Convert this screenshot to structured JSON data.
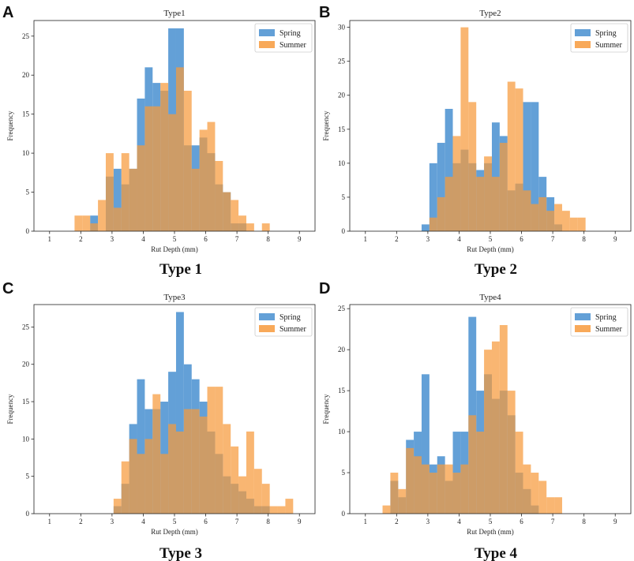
{
  "colors": {
    "spring": "#5b9bd5",
    "summer": "#f79a3c",
    "overlap": "#c98445"
  },
  "chart_data": [
    {
      "type": "bar",
      "panel_letter": "A",
      "caption": "Type 1",
      "title": "Type1",
      "xlabel": "Rut Depth (mm)",
      "ylabel": "Frequency",
      "xlim": [
        0.5,
        9.5
      ],
      "ylim": [
        0,
        27
      ],
      "xticks": [
        1,
        2,
        3,
        4,
        5,
        6,
        7,
        8,
        9
      ],
      "yticks": [
        0,
        5,
        10,
        15,
        20,
        25
      ],
      "legend": [
        "Spring",
        "Summer"
      ],
      "series": [
        {
          "name": "Spring",
          "bins": [
            [
              2.3,
              2.55,
              2
            ],
            [
              2.8,
              3.05,
              7
            ],
            [
              3.05,
              3.3,
              8
            ],
            [
              3.3,
              3.55,
              6
            ],
            [
              3.55,
              3.8,
              8
            ],
            [
              3.8,
              4.05,
              17
            ],
            [
              4.05,
              4.3,
              21
            ],
            [
              4.3,
              4.55,
              19
            ],
            [
              4.55,
              4.8,
              18
            ],
            [
              4.8,
              5.05,
              26
            ],
            [
              5.05,
              5.3,
              26
            ],
            [
              5.3,
              5.55,
              11
            ],
            [
              5.55,
              5.8,
              11
            ],
            [
              5.8,
              6.05,
              12
            ],
            [
              6.05,
              6.3,
              10
            ],
            [
              6.3,
              6.55,
              6
            ],
            [
              6.55,
              6.8,
              5
            ],
            [
              6.8,
              7.05,
              1
            ],
            [
              7.05,
              7.3,
              1
            ]
          ]
        },
        {
          "name": "Summer",
          "bins": [
            [
              1.8,
              2.05,
              2
            ],
            [
              2.05,
              2.3,
              2
            ],
            [
              2.3,
              2.55,
              1
            ],
            [
              2.55,
              2.8,
              4
            ],
            [
              2.8,
              3.05,
              10
            ],
            [
              3.05,
              3.3,
              3
            ],
            [
              3.3,
              3.55,
              10
            ],
            [
              3.55,
              3.8,
              8
            ],
            [
              3.8,
              4.05,
              11
            ],
            [
              4.05,
              4.3,
              16
            ],
            [
              4.3,
              4.55,
              16
            ],
            [
              4.55,
              4.8,
              19
            ],
            [
              4.8,
              5.05,
              15
            ],
            [
              5.05,
              5.3,
              21
            ],
            [
              5.3,
              5.55,
              18
            ],
            [
              5.55,
              5.8,
              8
            ],
            [
              5.8,
              6.05,
              13
            ],
            [
              6.05,
              6.3,
              14
            ],
            [
              6.3,
              6.55,
              9
            ],
            [
              6.55,
              6.8,
              5
            ],
            [
              6.8,
              7.05,
              4
            ],
            [
              7.05,
              7.3,
              2
            ],
            [
              7.3,
              7.55,
              1
            ],
            [
              7.55,
              7.8,
              0
            ],
            [
              7.8,
              8.05,
              1
            ]
          ]
        }
      ]
    },
    {
      "type": "bar",
      "panel_letter": "B",
      "caption": "Type 2",
      "title": "Type2",
      "xlabel": "Rut Depth (mm)",
      "ylabel": "Frequency",
      "xlim": [
        0.5,
        9.5
      ],
      "ylim": [
        0,
        31
      ],
      "xticks": [
        1,
        2,
        3,
        4,
        5,
        6,
        7,
        8,
        9
      ],
      "yticks": [
        0,
        5,
        10,
        15,
        20,
        25,
        30
      ],
      "legend": [
        "Spring",
        "Summer"
      ],
      "series": [
        {
          "name": "Spring",
          "bins": [
            [
              2.8,
              3.05,
              1
            ],
            [
              3.05,
              3.3,
              10
            ],
            [
              3.3,
              3.55,
              13
            ],
            [
              3.55,
              3.8,
              18
            ],
            [
              3.8,
              4.05,
              10
            ],
            [
              4.05,
              4.3,
              12
            ],
            [
              4.3,
              4.55,
              10
            ],
            [
              4.55,
              4.8,
              9
            ],
            [
              4.8,
              5.05,
              10
            ],
            [
              5.05,
              5.3,
              16
            ],
            [
              5.3,
              5.55,
              14
            ],
            [
              5.55,
              5.8,
              6
            ],
            [
              5.8,
              6.05,
              7
            ],
            [
              6.05,
              6.3,
              19
            ],
            [
              6.3,
              6.55,
              19
            ],
            [
              6.55,
              6.8,
              8
            ],
            [
              6.8,
              7.05,
              5
            ],
            [
              7.05,
              7.3,
              1
            ]
          ]
        },
        {
          "name": "Summer",
          "bins": [
            [
              3.05,
              3.3,
              2
            ],
            [
              3.3,
              3.55,
              5
            ],
            [
              3.55,
              3.8,
              8
            ],
            [
              3.8,
              4.05,
              14
            ],
            [
              4.05,
              4.3,
              30
            ],
            [
              4.3,
              4.55,
              19
            ],
            [
              4.55,
              4.8,
              8
            ],
            [
              4.8,
              5.05,
              11
            ],
            [
              5.05,
              5.3,
              8
            ],
            [
              5.3,
              5.55,
              13
            ],
            [
              5.55,
              5.8,
              22
            ],
            [
              5.8,
              6.05,
              21
            ],
            [
              6.05,
              6.3,
              6
            ],
            [
              6.3,
              6.55,
              4
            ],
            [
              6.55,
              6.8,
              5
            ],
            [
              6.8,
              7.05,
              3
            ],
            [
              7.05,
              7.3,
              4
            ],
            [
              7.3,
              7.55,
              3
            ],
            [
              7.55,
              7.8,
              2
            ],
            [
              7.8,
              8.05,
              2
            ]
          ]
        }
      ]
    },
    {
      "type": "bar",
      "panel_letter": "C",
      "caption": "Type 3",
      "title": "Type3",
      "xlabel": "Rut Depth (mm)",
      "ylabel": "Frequency",
      "xlim": [
        0.5,
        9.5
      ],
      "ylim": [
        0,
        28
      ],
      "xticks": [
        1,
        2,
        3,
        4,
        5,
        6,
        7,
        8,
        9
      ],
      "yticks": [
        0,
        5,
        10,
        15,
        20,
        25
      ],
      "legend": [
        "Spring",
        "Summer"
      ],
      "series": [
        {
          "name": "Spring",
          "bins": [
            [
              3.05,
              3.3,
              1
            ],
            [
              3.3,
              3.55,
              4
            ],
            [
              3.55,
              3.8,
              12
            ],
            [
              3.8,
              4.05,
              18
            ],
            [
              4.05,
              4.3,
              14
            ],
            [
              4.3,
              4.55,
              14
            ],
            [
              4.55,
              4.8,
              15
            ],
            [
              4.8,
              5.05,
              19
            ],
            [
              5.05,
              5.3,
              27
            ],
            [
              5.3,
              5.55,
              20
            ],
            [
              5.55,
              5.8,
              18
            ],
            [
              5.8,
              6.05,
              15
            ],
            [
              6.05,
              6.3,
              11
            ],
            [
              6.3,
              6.55,
              8
            ],
            [
              6.55,
              6.8,
              5
            ],
            [
              6.8,
              7.05,
              4
            ],
            [
              7.05,
              7.3,
              3
            ],
            [
              7.3,
              7.55,
              2
            ],
            [
              7.55,
              7.8,
              1
            ],
            [
              7.8,
              8.05,
              1
            ]
          ]
        },
        {
          "name": "Summer",
          "bins": [
            [
              3.05,
              3.3,
              2
            ],
            [
              3.3,
              3.55,
              7
            ],
            [
              3.55,
              3.8,
              10
            ],
            [
              3.8,
              4.05,
              8
            ],
            [
              4.05,
              4.3,
              10
            ],
            [
              4.3,
              4.55,
              16
            ],
            [
              4.55,
              4.8,
              8
            ],
            [
              4.8,
              5.05,
              12
            ],
            [
              5.05,
              5.3,
              11
            ],
            [
              5.3,
              5.55,
              14
            ],
            [
              5.55,
              5.8,
              14
            ],
            [
              5.8,
              6.05,
              13
            ],
            [
              6.05,
              6.3,
              17
            ],
            [
              6.3,
              6.55,
              17
            ],
            [
              6.55,
              6.8,
              12
            ],
            [
              6.8,
              7.05,
              9
            ],
            [
              7.05,
              7.3,
              5
            ],
            [
              7.3,
              7.55,
              11
            ],
            [
              7.55,
              7.8,
              6
            ],
            [
              7.8,
              8.05,
              4
            ],
            [
              8.05,
              8.3,
              1
            ],
            [
              8.3,
              8.55,
              1
            ],
            [
              8.55,
              8.8,
              2
            ]
          ]
        }
      ]
    },
    {
      "type": "bar",
      "panel_letter": "D",
      "caption": "Type 4",
      "title": "Type4",
      "xlabel": "Rut Depth (mm)",
      "ylabel": "Frequency",
      "xlim": [
        0.5,
        9.5
      ],
      "ylim": [
        0,
        25.5
      ],
      "xticks": [
        1,
        2,
        3,
        4,
        5,
        6,
        7,
        8,
        9
      ],
      "yticks": [
        0,
        5,
        10,
        15,
        20,
        25
      ],
      "legend": [
        "Spring",
        "Summer"
      ],
      "series": [
        {
          "name": "Spring",
          "bins": [
            [
              1.8,
              2.05,
              4
            ],
            [
              2.05,
              2.3,
              2
            ],
            [
              2.3,
              2.55,
              9
            ],
            [
              2.55,
              2.8,
              10
            ],
            [
              2.8,
              3.05,
              17
            ],
            [
              3.05,
              3.3,
              6
            ],
            [
              3.3,
              3.55,
              7
            ],
            [
              3.55,
              3.8,
              4
            ],
            [
              3.8,
              4.05,
              10
            ],
            [
              4.05,
              4.3,
              10
            ],
            [
              4.3,
              4.55,
              24
            ],
            [
              4.55,
              4.8,
              15
            ],
            [
              4.8,
              5.05,
              17
            ],
            [
              5.05,
              5.3,
              14
            ],
            [
              5.3,
              5.55,
              15
            ],
            [
              5.55,
              5.8,
              12
            ],
            [
              5.8,
              6.05,
              5
            ],
            [
              6.05,
              6.3,
              3
            ],
            [
              6.3,
              6.55,
              1
            ]
          ]
        },
        {
          "name": "Summer",
          "bins": [
            [
              1.55,
              1.8,
              1
            ],
            [
              1.8,
              2.05,
              5
            ],
            [
              2.05,
              2.3,
              3
            ],
            [
              2.3,
              2.55,
              8
            ],
            [
              2.55,
              2.8,
              7
            ],
            [
              2.8,
              3.05,
              6
            ],
            [
              3.05,
              3.3,
              5
            ],
            [
              3.3,
              3.55,
              6
            ],
            [
              3.55,
              3.8,
              6
            ],
            [
              3.8,
              4.05,
              5
            ],
            [
              4.05,
              4.3,
              6
            ],
            [
              4.3,
              4.55,
              12
            ],
            [
              4.55,
              4.8,
              10
            ],
            [
              4.8,
              5.05,
              20
            ],
            [
              5.05,
              5.3,
              21
            ],
            [
              5.3,
              5.55,
              23
            ],
            [
              5.55,
              5.8,
              15
            ],
            [
              5.8,
              6.05,
              10
            ],
            [
              6.05,
              6.3,
              6
            ],
            [
              6.3,
              6.55,
              5
            ],
            [
              6.55,
              6.8,
              4
            ],
            [
              6.8,
              7.05,
              2
            ],
            [
              7.05,
              7.3,
              2
            ]
          ]
        }
      ]
    }
  ]
}
